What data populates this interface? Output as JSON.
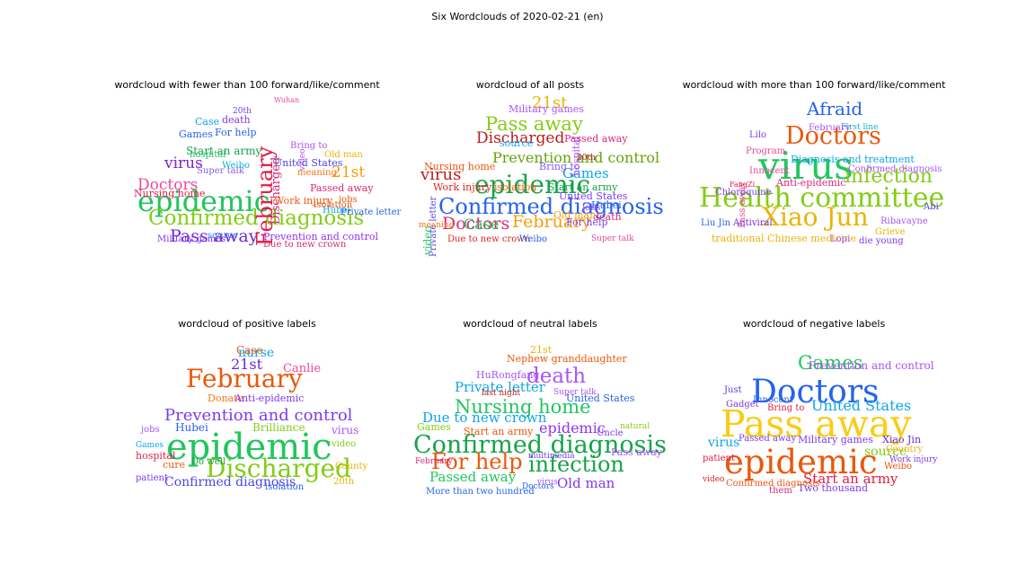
{
  "title": "Six Wordclouds of 2020-02-21 (en)",
  "chart_data": [
    {
      "type": "wordcloud",
      "title": "wordcloud with fewer than 100 forward/like/comment",
      "words": [
        {
          "text": "epidemic",
          "color": "#22c55e"
        },
        {
          "text": "Confirmed diagnosis",
          "color": "#84cc16"
        },
        {
          "text": "Pass away",
          "color": "#6d28d9"
        },
        {
          "text": "February",
          "color": "#e11d48"
        },
        {
          "text": "Doctors",
          "color": "#ec4899"
        },
        {
          "text": "virus",
          "color": "#7e22ce"
        },
        {
          "text": "21st",
          "color": "#f59e0b"
        },
        {
          "text": "Discharged",
          "color": "#db2777"
        },
        {
          "text": "Nursing home",
          "color": "#e11d48"
        },
        {
          "text": "Start an army",
          "color": "#16a34a"
        },
        {
          "text": "Games",
          "color": "#2563eb"
        },
        {
          "text": "For help",
          "color": "#2563eb"
        },
        {
          "text": "Case",
          "color": "#0ea5e9"
        },
        {
          "text": "death",
          "color": "#7c3aed"
        },
        {
          "text": "United States",
          "color": "#4f46e5"
        },
        {
          "text": "Work injury",
          "color": "#ea580c"
        },
        {
          "text": "Prevention and control",
          "color": "#9333ea"
        },
        {
          "text": "Passed away",
          "color": "#db2777"
        },
        {
          "text": "Military games",
          "color": "#7c3aed"
        },
        {
          "text": "source",
          "color": "#3b82f6"
        },
        {
          "text": "Due to new crown",
          "color": "#db2777"
        },
        {
          "text": "isolation",
          "color": "#ea580c"
        },
        {
          "text": "Bring to",
          "color": "#a855f7"
        },
        {
          "text": "Old man",
          "color": "#eab308"
        },
        {
          "text": "hospital",
          "color": "#22c55e"
        },
        {
          "text": "Weibo",
          "color": "#06b6d4"
        },
        {
          "text": "Super talk",
          "color": "#8b5cf6"
        },
        {
          "text": "meaning",
          "color": "#f97316"
        },
        {
          "text": "jobs",
          "color": "#ea580c"
        },
        {
          "text": "Hubei",
          "color": "#0ea5e9"
        },
        {
          "text": "Private letter",
          "color": "#2563eb"
        },
        {
          "text": "20th",
          "color": "#7c3aed"
        },
        {
          "text": "video",
          "color": "#a855f7"
        },
        {
          "text": "Wuhan",
          "color": "#ec4899"
        }
      ]
    },
    {
      "type": "wordcloud",
      "title": "wordcloud of all posts",
      "words": [
        {
          "text": "Confirmed diagnosis",
          "color": "#2563eb"
        },
        {
          "text": "epidemic",
          "color": "#16a34a"
        },
        {
          "text": "Prevention and control",
          "color": "#65a30d"
        },
        {
          "text": "Pass away",
          "color": "#84cc16"
        },
        {
          "text": "Discharged",
          "color": "#b91c1c"
        },
        {
          "text": "February",
          "color": "#f59e0b"
        },
        {
          "text": "Doctors",
          "color": "#db2777"
        },
        {
          "text": "21st",
          "color": "#eab308"
        },
        {
          "text": "virus",
          "color": "#b91c1c"
        },
        {
          "text": "Games",
          "color": "#0ea5e9"
        },
        {
          "text": "Start an army",
          "color": "#16a34a"
        },
        {
          "text": "United States",
          "color": "#7c3aed"
        },
        {
          "text": "Case",
          "color": "#22c55e"
        },
        {
          "text": "Nursing home",
          "color": "#ea580c"
        },
        {
          "text": "Work injury",
          "color": "#dc2626"
        },
        {
          "text": "Military games",
          "color": "#a855f7"
        },
        {
          "text": "Passed away",
          "color": "#db2777"
        },
        {
          "text": "source",
          "color": "#0ea5e9"
        },
        {
          "text": "Bring to",
          "color": "#8b5cf6"
        },
        {
          "text": "For help",
          "color": "#7c3aed"
        },
        {
          "text": "death",
          "color": "#db2777"
        },
        {
          "text": "Hubei",
          "color": "#2563eb"
        },
        {
          "text": "Due to new crown",
          "color": "#dc2626"
        },
        {
          "text": "isolation",
          "color": "#ea580c"
        },
        {
          "text": "Weibo",
          "color": "#2563eb"
        },
        {
          "text": "hospital",
          "color": "#a855f7"
        },
        {
          "text": "Old man",
          "color": "#f59e0b"
        },
        {
          "text": "Private letter",
          "color": "#4f46e5"
        },
        {
          "text": "video",
          "color": "#22c55e"
        },
        {
          "text": "20th",
          "color": "#b91c1c"
        },
        {
          "text": "jobs",
          "color": "#a855f7"
        },
        {
          "text": "meaning",
          "color": "#f97316"
        },
        {
          "text": "Super talk",
          "color": "#ec4899"
        }
      ]
    },
    {
      "type": "wordcloud",
      "title": "wordcloud with more than 100 forward/like/comment",
      "words": [
        {
          "text": "Health committee",
          "color": "#84cc16"
        },
        {
          "text": "virus",
          "color": "#22c55e"
        },
        {
          "text": "Xiao Jun",
          "color": "#eab308"
        },
        {
          "text": "Doctors",
          "color": "#ea580c"
        },
        {
          "text": "infection",
          "color": "#84cc16"
        },
        {
          "text": "Afraid",
          "color": "#2563eb"
        },
        {
          "text": "Diagnosis and treatment",
          "color": "#0ea5e9"
        },
        {
          "text": "Anti-epidemic",
          "color": "#db2777"
        },
        {
          "text": "Confirmed diagnosis",
          "color": "#a855f7"
        },
        {
          "text": "First line",
          "color": "#06b6d4"
        },
        {
          "text": "Lilo",
          "color": "#7c3aed"
        },
        {
          "text": "Program",
          "color": "#ec4899"
        },
        {
          "text": "Pass away",
          "color": "#ec4899"
        },
        {
          "text": "Chloroquine",
          "color": "#7c3aed"
        },
        {
          "text": "Innocent",
          "color": "#ec4899"
        },
        {
          "text": "Antiviral",
          "color": "#6d28d9"
        },
        {
          "text": "Liu Jin",
          "color": "#2563eb"
        },
        {
          "text": "Ribavayne",
          "color": "#a855f7"
        },
        {
          "text": "Grieve",
          "color": "#eab308"
        },
        {
          "text": "traditional Chinese medicine",
          "color": "#eab308"
        },
        {
          "text": "Lopi",
          "color": "#a855f7"
        },
        {
          "text": "die young",
          "color": "#7c3aed"
        },
        {
          "text": "Abi",
          "color": "#4f46e5"
        },
        {
          "text": "February",
          "color": "#a855f7"
        },
        {
          "text": "FangZi",
          "color": "#e11d48"
        }
      ]
    },
    {
      "type": "wordcloud",
      "title": "wordcloud of positive labels",
      "words": [
        {
          "text": "epidemic",
          "color": "#22c55e"
        },
        {
          "text": "February",
          "color": "#ea580c"
        },
        {
          "text": "Discharged",
          "color": "#84cc16"
        },
        {
          "text": "Prevention and control",
          "color": "#7c3aed"
        },
        {
          "text": "Confirmed diagnosis",
          "color": "#4f46e5"
        },
        {
          "text": "nurse",
          "color": "#0ea5e9"
        },
        {
          "text": "21st",
          "color": "#6d28d9"
        },
        {
          "text": "Case",
          "color": "#ea580c"
        },
        {
          "text": "Canlie",
          "color": "#ec4899"
        },
        {
          "text": "Hubei",
          "color": "#2563eb"
        },
        {
          "text": "jobs",
          "color": "#a855f7"
        },
        {
          "text": "Brilliance",
          "color": "#84cc16"
        },
        {
          "text": "virus",
          "color": "#a855f7"
        },
        {
          "text": "hospital",
          "color": "#e11d48"
        },
        {
          "text": "cure",
          "color": "#ea580c"
        },
        {
          "text": "Do well",
          "color": "#16a34a"
        },
        {
          "text": "patient",
          "color": "#7c3aed"
        },
        {
          "text": "isolation",
          "color": "#2563eb"
        },
        {
          "text": "20th",
          "color": "#eab308"
        },
        {
          "text": "County",
          "color": "#eab308"
        },
        {
          "text": "Donate",
          "color": "#f97316"
        },
        {
          "text": "Anti-epidemic",
          "color": "#7c3aed"
        },
        {
          "text": "video",
          "color": "#84cc16"
        },
        {
          "text": "Games",
          "color": "#0ea5e9"
        }
      ]
    },
    {
      "type": "wordcloud",
      "title": "wordcloud of neutral labels",
      "words": [
        {
          "text": "Confirmed diagnosis",
          "color": "#16a34a"
        },
        {
          "text": "Nursing home",
          "color": "#22c55e"
        },
        {
          "text": "For help",
          "color": "#ea580c"
        },
        {
          "text": "infection",
          "color": "#16a34a"
        },
        {
          "text": "death",
          "color": "#a855f7"
        },
        {
          "text": "Due to new crown",
          "color": "#0ea5e9"
        },
        {
          "text": "epidemic",
          "color": "#9333ea"
        },
        {
          "text": "Private letter",
          "color": "#0ea5e9"
        },
        {
          "text": "Passed away",
          "color": "#22c55e"
        },
        {
          "text": "Old man",
          "color": "#7c3aed"
        },
        {
          "text": "Nephew granddaughter",
          "color": "#ea580c"
        },
        {
          "text": "HuRongfang",
          "color": "#a855f7"
        },
        {
          "text": "Start an army",
          "color": "#ea580c"
        },
        {
          "text": "Games",
          "color": "#84cc16"
        },
        {
          "text": "Pass away",
          "color": "#a855f7"
        },
        {
          "text": "United States",
          "color": "#2563eb"
        },
        {
          "text": "More than two hundred",
          "color": "#2563eb"
        },
        {
          "text": "Super talk",
          "color": "#a855f7"
        },
        {
          "text": "Uncle",
          "color": "#7c3aed"
        },
        {
          "text": "natural",
          "color": "#84cc16"
        },
        {
          "text": "21st",
          "color": "#eab308"
        },
        {
          "text": "February",
          "color": "#db2777"
        },
        {
          "text": "Doctors",
          "color": "#2563eb"
        },
        {
          "text": "multimedia",
          "color": "#7c3aed"
        },
        {
          "text": "virus",
          "color": "#a855f7"
        },
        {
          "text": "last night",
          "color": "#b91c1c"
        }
      ]
    },
    {
      "type": "wordcloud",
      "title": "wordcloud of negative labels",
      "words": [
        {
          "text": "Pass away",
          "color": "#facc15"
        },
        {
          "text": "epidemic",
          "color": "#ea580c"
        },
        {
          "text": "Doctors",
          "color": "#2563eb"
        },
        {
          "text": "Games",
          "color": "#22c55e"
        },
        {
          "text": "United States",
          "color": "#0ea5e9"
        },
        {
          "text": "Start an army",
          "color": "#e11d48"
        },
        {
          "text": "virus",
          "color": "#0ea5e9"
        },
        {
          "text": "source",
          "color": "#84cc16"
        },
        {
          "text": "Military games",
          "color": "#7c3aed"
        },
        {
          "text": "Prevention and control",
          "color": "#a855f7"
        },
        {
          "text": "Passed away",
          "color": "#7c3aed"
        },
        {
          "text": "Bring to",
          "color": "#e11d48"
        },
        {
          "text": "Xiao Jin",
          "color": "#6d28d9"
        },
        {
          "text": "Two thousand",
          "color": "#7c3aed"
        },
        {
          "text": "Innocent",
          "color": "#2563eb"
        },
        {
          "text": "Confirmed diagnosis",
          "color": "#ea580c"
        },
        {
          "text": "patient",
          "color": "#e11d48"
        },
        {
          "text": "video",
          "color": "#dc2626"
        },
        {
          "text": "Weibo",
          "color": "#ea580c"
        },
        {
          "text": "Gadget",
          "color": "#7c3aed"
        },
        {
          "text": "Country",
          "color": "#eab308"
        },
        {
          "text": "them",
          "color": "#db2777"
        },
        {
          "text": "Just",
          "color": "#4f46e5"
        },
        {
          "text": "Work injury",
          "color": "#7c3aed"
        }
      ]
    }
  ]
}
